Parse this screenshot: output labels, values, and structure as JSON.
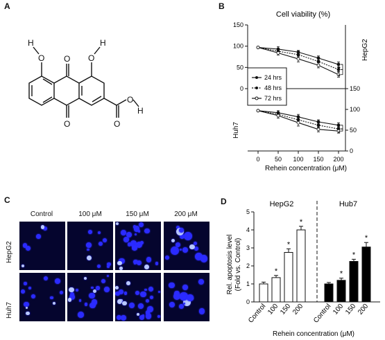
{
  "panels": {
    "a": "A",
    "b": "B",
    "c": "C",
    "d": "D"
  },
  "structure": {
    "atoms": [
      "H",
      "O",
      "O",
      "H",
      "O",
      "O",
      "H",
      "O"
    ]
  },
  "chart_b": {
    "title": "Cell viability (%)",
    "xlabel": "Rehein concentration (μM)",
    "top_cell_label": "HepG2",
    "bottom_cell_label": "Huh7",
    "legend": [
      "24 hrs",
      "48 hrs",
      "72 hrs"
    ],
    "significance_marks": [
      "*",
      "*",
      "*",
      "*"
    ],
    "left_ticks_top": [
      "150",
      "100",
      "50",
      "0"
    ],
    "right_ticks_bottom": [
      "150",
      "100",
      "50",
      "0"
    ],
    "x_ticks": [
      "0",
      "50",
      "100",
      "150",
      "200"
    ]
  },
  "chart_c": {
    "columns": [
      "Control",
      "100 μM",
      "150 μM",
      "200 μM"
    ],
    "rows": [
      "HepG2",
      "Huh7"
    ]
  },
  "chart_d": {
    "ylabel_line1": "Rel. apoptosis level",
    "ylabel_line2": "(Fold vs. Control)",
    "xlabel": "Rehein concentration (μM)",
    "group_hepg2": "HepG2",
    "group_huh7": "Hub7",
    "y_ticks": [
      "0",
      "1",
      "2",
      "3",
      "4",
      "5"
    ],
    "categories": [
      "Control",
      "100",
      "150",
      "200",
      "Control",
      "100",
      "150",
      "200"
    ],
    "significance_marks": [
      "*",
      "*",
      "*",
      "*",
      "*",
      "*"
    ]
  },
  "chart_data": [
    {
      "type": "line",
      "title": "Cell viability (%)",
      "xlabel": "Rehein concentration (μM)",
      "ylabel": "",
      "subplot": "HepG2",
      "x": [
        0,
        50,
        100,
        150,
        200
      ],
      "ylim": [
        0,
        150
      ],
      "series": [
        {
          "name": "24 hrs",
          "values": [
            97,
            93,
            86,
            72,
            57
          ],
          "errors": [
            2,
            6,
            4,
            5,
            6
          ]
        },
        {
          "name": "48 hrs",
          "values": [
            97,
            88,
            80,
            64,
            45
          ],
          "errors": [
            2,
            5,
            5,
            6,
            5
          ]
        },
        {
          "name": "72 hrs",
          "values": [
            97,
            84,
            70,
            55,
            33
          ],
          "errors": [
            2,
            5,
            7,
            6,
            6
          ]
        }
      ],
      "legend": "left"
    },
    {
      "type": "line",
      "xlabel": "Rehein concentration (μM)",
      "subplot": "Huh7",
      "x": [
        0,
        50,
        100,
        150,
        200
      ],
      "ylim": [
        0,
        150
      ],
      "series": [
        {
          "name": "24 hrs",
          "values": [
            97,
            92,
            82,
            70,
            62
          ],
          "errors": [
            2,
            5,
            6,
            5,
            6
          ]
        },
        {
          "name": "48 hrs",
          "values": [
            97,
            88,
            75,
            62,
            53
          ],
          "errors": [
            2,
            5,
            6,
            6,
            5
          ]
        },
        {
          "name": "72 hrs",
          "values": [
            97,
            85,
            68,
            52,
            48
          ],
          "errors": [
            2,
            6,
            8,
            6,
            5
          ]
        }
      ]
    },
    {
      "type": "bar",
      "xlabel": "Rehein concentration (μM)",
      "ylabel": "Rel. apoptosis level (Fold vs. Control)",
      "ylim": [
        0,
        5
      ],
      "categories": [
        "Control",
        "100",
        "150",
        "200",
        "Control",
        "100",
        "150",
        "200"
      ],
      "groups": [
        "HepG2",
        "Hub7"
      ],
      "values": [
        1.0,
        1.35,
        2.75,
        4.0,
        1.0,
        1.2,
        2.25,
        3.05
      ],
      "errors": [
        0.1,
        0.12,
        0.2,
        0.2,
        0.08,
        0.12,
        0.12,
        0.25
      ],
      "colors": [
        "#ffffff",
        "#ffffff",
        "#ffffff",
        "#ffffff",
        "#000000",
        "#000000",
        "#000000",
        "#000000"
      ]
    }
  ],
  "micro": {
    "cell_color": "#2b2bff",
    "bg_color": "#05052e"
  }
}
